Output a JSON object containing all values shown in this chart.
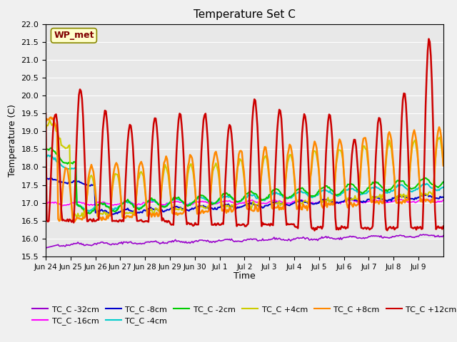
{
  "title": "Temperature Set C",
  "xlabel": "Time",
  "ylabel": "Temperature (C)",
  "ylim": [
    15.5,
    22.0
  ],
  "yticks": [
    15.5,
    16.0,
    16.5,
    17.0,
    17.5,
    18.0,
    18.5,
    19.0,
    19.5,
    20.0,
    20.5,
    21.0,
    21.5,
    22.0
  ],
  "background_color": "#f0f0f0",
  "plot_bg_color": "#e8e8e8",
  "wp_met_label": "WP_met",
  "wp_met_bg": "#ffffcc",
  "wp_met_text_color": "#800000",
  "series_names": [
    "TC_C -32cm",
    "TC_C -16cm",
    "TC_C -8cm",
    "TC_C -4cm",
    "TC_C -2cm",
    "TC_C +4cm",
    "TC_C +8cm",
    "TC_C +12cm"
  ],
  "series_colors": [
    "#9900cc",
    "#ff00ff",
    "#0000cc",
    "#00cccc",
    "#00cc00",
    "#cccc00",
    "#ff8800",
    "#cc0000"
  ],
  "series_lw": [
    1.2,
    1.2,
    1.5,
    1.5,
    1.5,
    1.5,
    1.8,
    1.8
  ],
  "tick_labels": [
    "Jun 24",
    "Jun 25",
    "Jun 26",
    "Jun 27",
    "Jun 28",
    "Jun 29",
    "Jun 30",
    "Jul 1",
    "Jul 2",
    "Jul 3",
    "Jul 4",
    "Jul 5",
    "Jul 6",
    "Jul 7",
    "Jul 8",
    "Jul 9"
  ],
  "n_days": 16,
  "legend_ncol": 6,
  "peak_heights": [
    19.5,
    20.2,
    19.6,
    19.2,
    19.4,
    19.5,
    19.5,
    19.2,
    19.9,
    19.6,
    19.5,
    19.5,
    18.8,
    19.4,
    20.1,
    21.6
  ],
  "trough_heights": [
    16.5,
    16.5,
    16.5,
    16.5,
    16.5,
    16.4,
    16.4,
    16.4,
    16.4,
    16.4,
    16.3,
    16.3,
    16.3,
    16.3,
    16.3,
    16.3
  ]
}
